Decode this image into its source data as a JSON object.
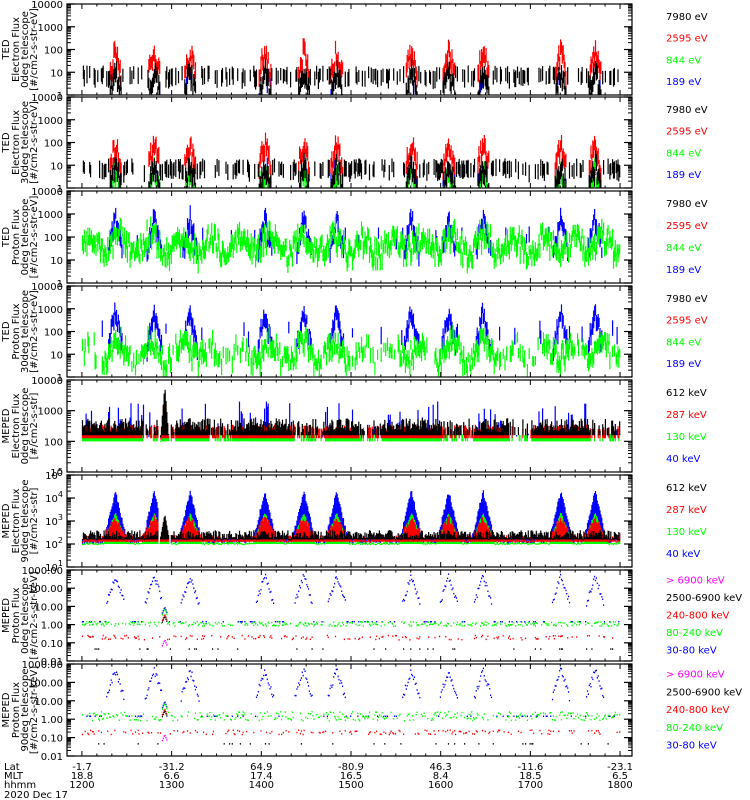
{
  "chart_data": [
    {
      "type": "bar",
      "title": "",
      "instrument_label": "TED",
      "ylabel": [
        "Electron Flux",
        "0deg telescope",
        "[#/cm2-s-str-eV]"
      ],
      "yscale": "log",
      "ylim": [
        1,
        10000
      ],
      "yticks": [
        "10000",
        "1000",
        "100",
        "10",
        "1"
      ],
      "legend_placement": "right",
      "series": [
        {
          "name": "7980 eV",
          "color": "#000000"
        },
        {
          "name": "2595 eV",
          "color": "#ff0000"
        },
        {
          "name": "844 eV",
          "color": "#00ff00"
        },
        {
          "name": "189 eV",
          "color": "#0000ff"
        }
      ],
      "profile": "ted_electron_0",
      "seed": 11
    },
    {
      "type": "bar",
      "title": "",
      "instrument_label": "TED",
      "ylabel": [
        "Electron Flux",
        "30deg telescope",
        "[#/cm2-s-str-eV]"
      ],
      "yscale": "log",
      "ylim": [
        1,
        10000
      ],
      "yticks": [
        "10000",
        "1000",
        "100",
        "10",
        "1"
      ],
      "legend_placement": "right",
      "series": [
        {
          "name": "7980 eV",
          "color": "#000000"
        },
        {
          "name": "2595 eV",
          "color": "#ff0000"
        },
        {
          "name": "844 eV",
          "color": "#00ff00"
        },
        {
          "name": "189 eV",
          "color": "#0000ff"
        }
      ],
      "profile": "ted_electron_30",
      "seed": 23
    },
    {
      "type": "bar",
      "title": "",
      "instrument_label": "TED",
      "ylabel": [
        "Proton Flux",
        "0deg telescope",
        "[#/cm2-s-str-eV]"
      ],
      "yscale": "log",
      "ylim": [
        1,
        10000
      ],
      "yticks": [
        "10000",
        "1000",
        "100",
        "10",
        "1"
      ],
      "legend_placement": "right",
      "series": [
        {
          "name": "7980 eV",
          "color": "#000000"
        },
        {
          "name": "2595 eV",
          "color": "#ff0000"
        },
        {
          "name": "844 eV",
          "color": "#00ff00"
        },
        {
          "name": "189 eV",
          "color": "#0000ff"
        }
      ],
      "profile": "ted_proton_0",
      "seed": 37
    },
    {
      "type": "bar",
      "title": "",
      "instrument_label": "TED",
      "ylabel": [
        "Proton Flux",
        "30deg telescope",
        "[#/cm2-s-str-eV]"
      ],
      "yscale": "log",
      "ylim": [
        1,
        10000
      ],
      "yticks": [
        "10000",
        "1000",
        "100",
        "10",
        "1"
      ],
      "legend_placement": "right",
      "series": [
        {
          "name": "7980 eV",
          "color": "#000000"
        },
        {
          "name": "2595 eV",
          "color": "#ff0000"
        },
        {
          "name": "844 eV",
          "color": "#00ff00"
        },
        {
          "name": "189 eV",
          "color": "#0000ff"
        }
      ],
      "profile": "ted_proton_30",
      "seed": 41
    },
    {
      "type": "bar",
      "title": "",
      "instrument_label": "MEPED",
      "ylabel": [
        "Electron Flux",
        "0deg telescope",
        "[#/cm2-s-str]"
      ],
      "yscale": "log",
      "ylim": [
        10,
        10000
      ],
      "yticks": [
        "10000",
        "1000",
        "100",
        "10"
      ],
      "legend_placement": "right",
      "series": [
        {
          "name": "612 keV",
          "color": "#000000"
        },
        {
          "name": "287 keV",
          "color": "#ff0000"
        },
        {
          "name": "130 keV",
          "color": "#00ff00"
        },
        {
          "name": "40 keV",
          "color": "#0000ff"
        }
      ],
      "profile": "meped_electron_0",
      "seed": 53
    },
    {
      "type": "bar",
      "title": "",
      "instrument_label": "MEPED",
      "ylabel": [
        "Electron Flux",
        "90deg telescope",
        "[#/cm2-s-str]"
      ],
      "yscale": "log",
      "ylim": [
        10,
        100000
      ],
      "yticks": [
        "10^5",
        "10^4",
        "10^3",
        "10^2",
        "10^1"
      ],
      "legend_placement": "right",
      "series": [
        {
          "name": "612 keV",
          "color": "#000000"
        },
        {
          "name": "287 keV",
          "color": "#ff0000"
        },
        {
          "name": "130 keV",
          "color": "#00ff00"
        },
        {
          "name": "40 keV",
          "color": "#0000ff"
        }
      ],
      "profile": "meped_electron_90",
      "seed": 67
    },
    {
      "type": "bar",
      "title": "",
      "instrument_label": "MEPED",
      "ylabel": [
        "Proton Flux",
        "0deg telescope",
        "[#/cm2-s-str-keV]"
      ],
      "yscale": "log",
      "ylim": [
        0.01,
        1000
      ],
      "yticks": [
        "1000.00",
        "100.00",
        "10.00",
        "1.00",
        "0.10",
        "0.01"
      ],
      "legend_placement": "right",
      "series": [
        {
          "name": "> 6900 keV",
          "color": "#ff00ff"
        },
        {
          "name": "2500-6900 keV",
          "color": "#000000"
        },
        {
          "name": "240-800 keV",
          "color": "#ff0000"
        },
        {
          "name": "80-240 keV",
          "color": "#00ff00"
        },
        {
          "name": "30-80 keV",
          "color": "#0000ff"
        }
      ],
      "profile": "meped_proton_0",
      "seed": 79
    },
    {
      "type": "bar",
      "title": "",
      "instrument_label": "MEPED",
      "ylabel": [
        "Proton Flux",
        "90deg telescope",
        "[#/cm2-s-str-keV]"
      ],
      "yscale": "log",
      "ylim": [
        0.01,
        1000
      ],
      "yticks": [
        "1000.00",
        "100.00",
        "10.00",
        "1.00",
        "0.10",
        "0.01"
      ],
      "legend_placement": "right",
      "series": [
        {
          "name": "> 6900 keV",
          "color": "#ff00ff"
        },
        {
          "name": "2500-6900 keV",
          "color": "#000000"
        },
        {
          "name": "240-800 keV",
          "color": "#ff0000"
        },
        {
          "name": "80-240 keV",
          "color": "#00ff00"
        },
        {
          "name": "30-80 keV",
          "color": "#0000ff"
        }
      ],
      "profile": "meped_proton_90",
      "seed": 83
    }
  ],
  "x_axis": {
    "range_hhmm": [
      1150,
      1808
    ],
    "row_labels": [
      "Lat",
      "MLT",
      "hhmm"
    ],
    "date": "2020 Dec 17",
    "ticks": [
      {
        "hhmm": 1200,
        "lat": "-1.7",
        "mlt": "18.8",
        "time": "1200"
      },
      {
        "hhmm": 1300,
        "lat": "-31.2",
        "mlt": "6.6",
        "time": "1300"
      },
      {
        "hhmm": 1400,
        "lat": "64.9",
        "mlt": "17.4",
        "time": "1400"
      },
      {
        "hhmm": 1500,
        "lat": "-80.9",
        "mlt": "16.5",
        "time": "1500"
      },
      {
        "hhmm": 1600,
        "lat": "46.3",
        "mlt": "8.4",
        "time": "1600"
      },
      {
        "hhmm": 1700,
        "lat": "-11.6",
        "mlt": "18.5",
        "time": "1700"
      },
      {
        "hhmm": 1800,
        "lat": "-23.1",
        "mlt": "6.5",
        "time": "1800"
      }
    ]
  },
  "events": {
    "pass_centers_minutes": [
      22,
      48,
      72,
      122,
      148,
      170,
      220,
      245,
      268,
      320,
      343,
      366
    ],
    "saa_center_minutes": 55
  }
}
